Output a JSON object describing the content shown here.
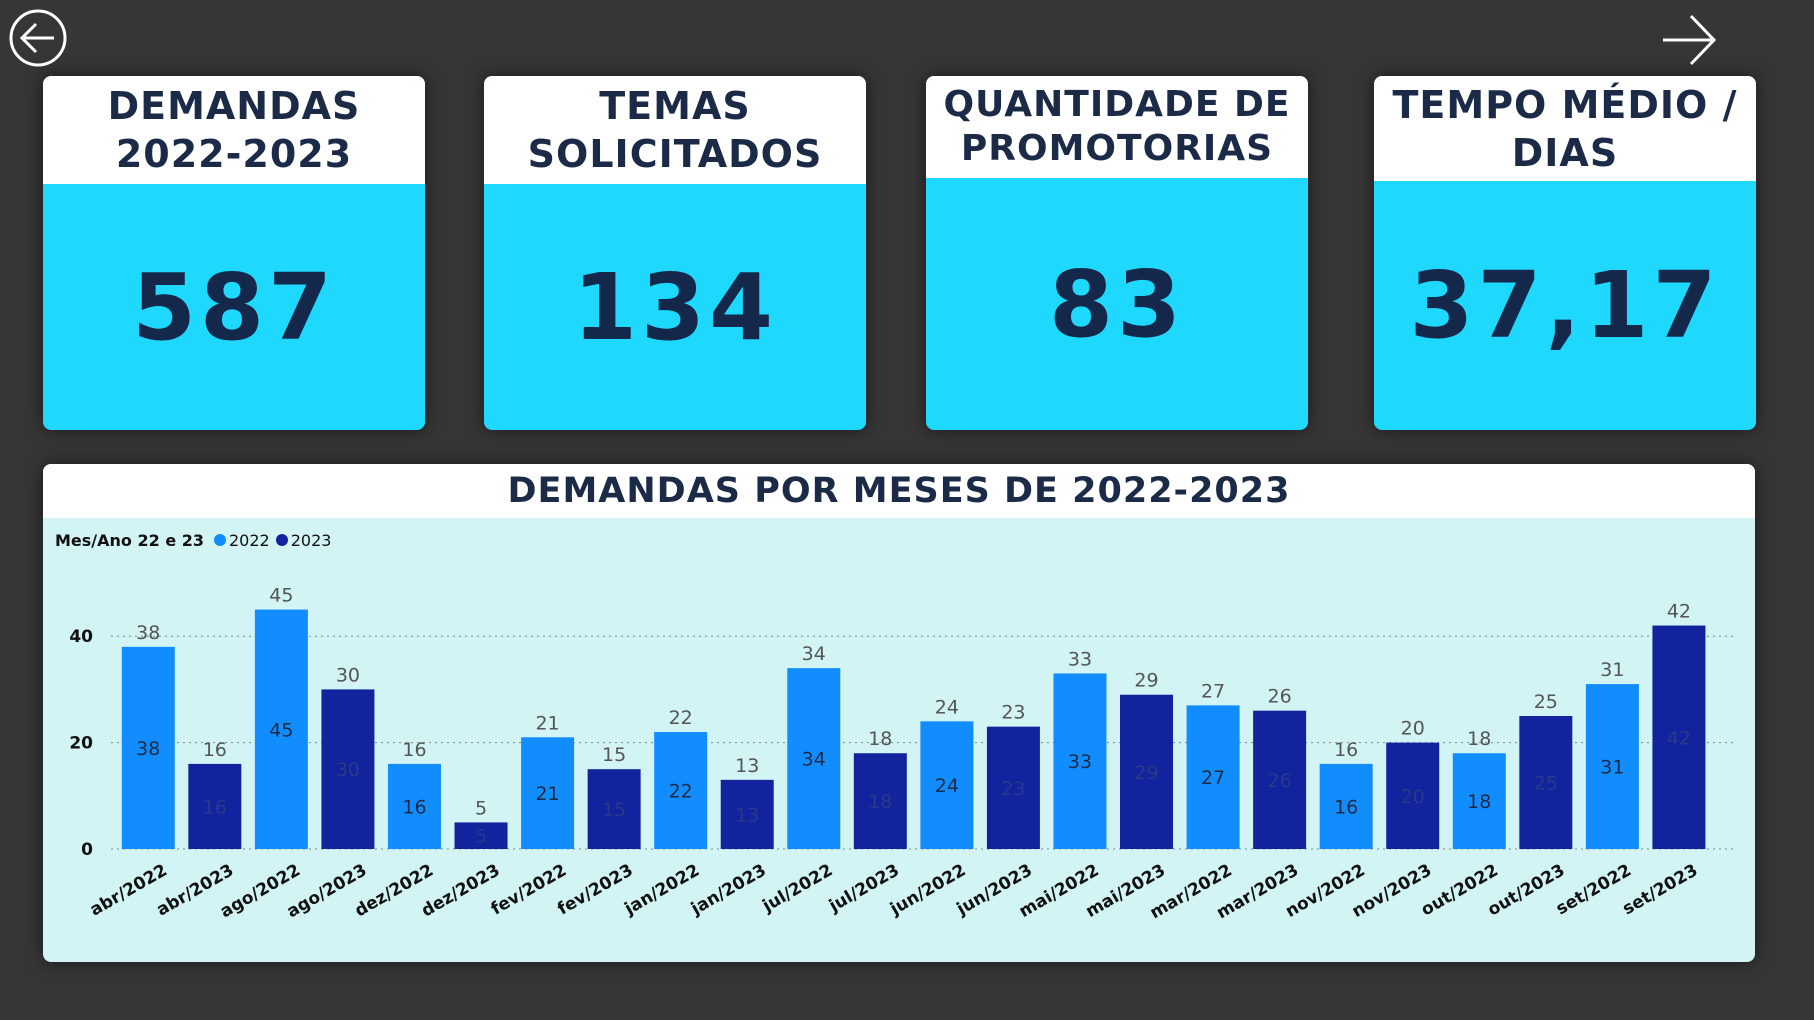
{
  "kpis": [
    {
      "title": "DEMANDAS\n2022-2023",
      "value": "587"
    },
    {
      "title": "TEMAS\nSOLICITADOS",
      "value": "134"
    },
    {
      "title": "QUANTIDADE DE\nPROMOTORIAS",
      "value": "83"
    },
    {
      "title": "TEMPO MÉDIO /\nDIAS",
      "value": "37,17"
    }
  ],
  "nav": {
    "back_icon": "arrow-left-circle-icon",
    "next_icon": "arrow-right-icon"
  },
  "colors": {
    "y2022": "#118dff",
    "y2023": "#12239e",
    "kpi_bg": "#1ed8fd",
    "chart_bg": "#d2f4f4"
  },
  "chart_data": {
    "type": "bar",
    "title": "DEMANDAS POR MESES DE 2022-2023",
    "legend_title": "Mes/Ano 22 e 23",
    "legend": [
      "2022",
      "2023"
    ],
    "legend_position": "top-left",
    "xlabel": "",
    "ylabel": "",
    "ylim": [
      0,
      48
    ],
    "yticks": [
      0,
      20,
      40
    ],
    "grid": true,
    "categories": [
      "abr/2022",
      "abr/2023",
      "ago/2022",
      "ago/2023",
      "dez/2022",
      "dez/2023",
      "fev/2022",
      "fev/2023",
      "jan/2022",
      "jan/2023",
      "jul/2022",
      "jul/2023",
      "jun/2022",
      "jun/2023",
      "mai/2022",
      "mai/2023",
      "mar/2022",
      "mar/2023",
      "nov/2022",
      "nov/2023",
      "out/2022",
      "out/2023",
      "set/2022",
      "set/2023"
    ],
    "values": [
      38,
      16,
      45,
      30,
      16,
      5,
      21,
      15,
      22,
      13,
      34,
      18,
      24,
      23,
      33,
      29,
      27,
      26,
      16,
      20,
      18,
      25,
      31,
      42
    ],
    "series_of_bar": [
      "2022",
      "2023",
      "2022",
      "2023",
      "2022",
      "2023",
      "2022",
      "2023",
      "2022",
      "2023",
      "2022",
      "2023",
      "2022",
      "2023",
      "2022",
      "2023",
      "2022",
      "2023",
      "2022",
      "2023",
      "2022",
      "2023",
      "2022",
      "2023"
    ]
  }
}
